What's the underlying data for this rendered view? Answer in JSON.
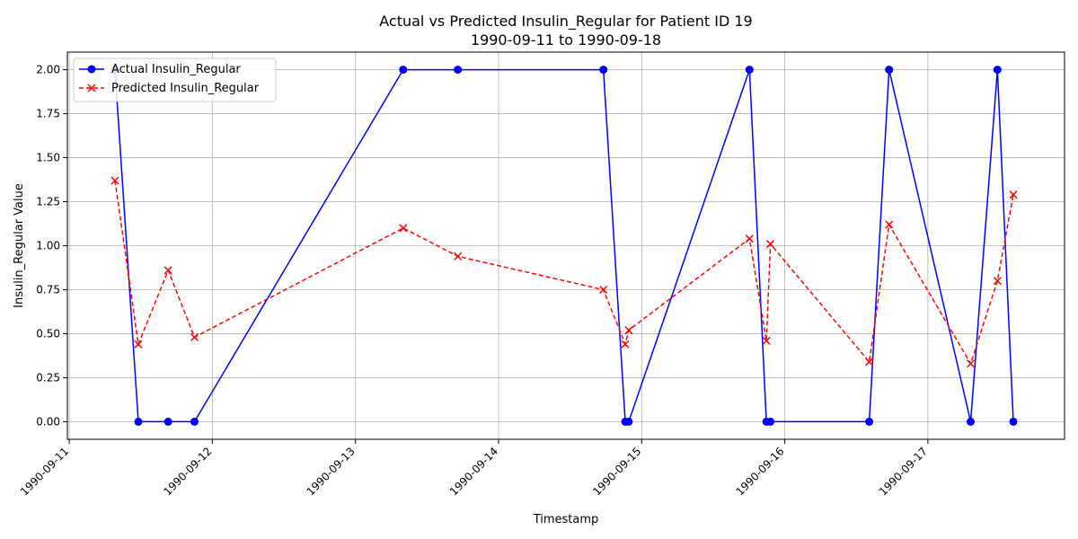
{
  "chart_data": {
    "type": "line",
    "title": "Actual vs Predicted Insulin_Regular for Patient ID 19",
    "subtitle": "1990-09-11 to 1990-09-18",
    "xlabel": "Timestamp",
    "ylabel": "Insulin_Regular Value",
    "xlim": [
      "1990-09-10T23:41",
      "1990-09-17T22:55"
    ],
    "ylim": [
      -0.1,
      2.1
    ],
    "x_ticks": [
      "1990-09-11",
      "1990-09-12",
      "1990-09-13",
      "1990-09-14",
      "1990-09-15",
      "1990-09-16",
      "1990-09-17"
    ],
    "y_ticks": [
      "0.00",
      "0.25",
      "0.50",
      "0.75",
      "1.00",
      "1.25",
      "1.50",
      "1.75",
      "2.00"
    ],
    "y_tick_values": [
      0,
      0.25,
      0.5,
      0.75,
      1.0,
      1.25,
      1.5,
      1.75,
      2.0
    ],
    "grid": true,
    "legend_position": "top-left",
    "series": [
      {
        "name": "Actual Insulin_Regular",
        "color": "#0000ff",
        "line_style": "solid",
        "marker": "circle",
        "x": [
          "1990-09-11T07:40",
          "1990-09-11T11:35",
          "1990-09-11T16:35",
          "1990-09-11T21:00",
          "1990-09-13T08:00",
          "1990-09-13T17:10",
          "1990-09-14T17:35",
          "1990-09-14T21:15",
          "1990-09-14T21:50",
          "1990-09-15T18:05",
          "1990-09-15T20:55",
          "1990-09-15T21:35",
          "1990-09-16T14:10",
          "1990-09-16T17:30",
          "1990-09-17T07:10",
          "1990-09-17T11:40",
          "1990-09-17T14:20"
        ],
        "y": [
          2.0,
          0.0,
          0.0,
          0.0,
          2.0,
          2.0,
          2.0,
          0.0,
          0.0,
          2.0,
          0.0,
          0.0,
          0.0,
          2.0,
          0.0,
          2.0,
          0.0
        ]
      },
      {
        "name": "Predicted Insulin_Regular",
        "color": "#ff0000",
        "line_style": "dashed",
        "marker": "x",
        "x": [
          "1990-09-11T07:40",
          "1990-09-11T11:35",
          "1990-09-11T16:35",
          "1990-09-11T21:00",
          "1990-09-13T08:00",
          "1990-09-13T17:10",
          "1990-09-14T17:35",
          "1990-09-14T21:15",
          "1990-09-14T21:50",
          "1990-09-15T18:05",
          "1990-09-15T20:55",
          "1990-09-15T21:35",
          "1990-09-16T14:10",
          "1990-09-16T17:30",
          "1990-09-17T07:10",
          "1990-09-17T11:40",
          "1990-09-17T14:20"
        ],
        "y": [
          1.37,
          0.44,
          0.86,
          0.48,
          1.1,
          0.94,
          0.75,
          0.44,
          0.52,
          1.04,
          0.46,
          1.01,
          0.34,
          1.12,
          0.33,
          0.8,
          1.29
        ]
      }
    ]
  }
}
